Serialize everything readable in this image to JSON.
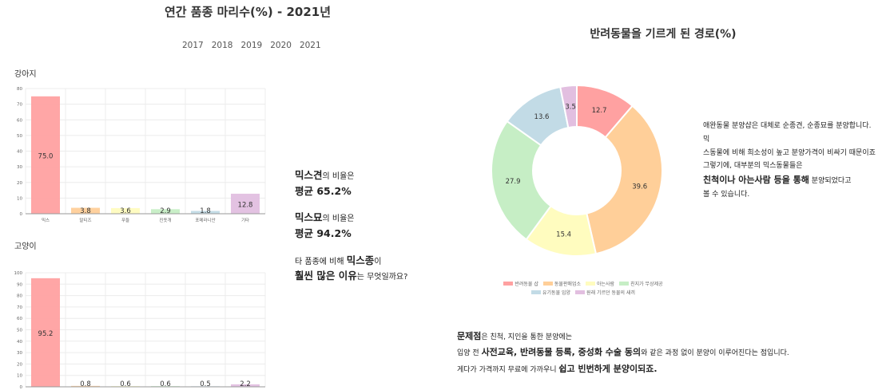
{
  "left": {
    "title": "연간 품종 마리수(%) - 2021년",
    "years": [
      "2017",
      "2018",
      "2019",
      "2020",
      "2021"
    ]
  },
  "chart_data": [
    {
      "type": "bar",
      "label": "강아지",
      "categories": [
        "믹스",
        "말티즈",
        "푸들",
        "진돗개",
        "포메라니안",
        "기타"
      ],
      "values": [
        75.0,
        3.8,
        3.6,
        2.9,
        1.8,
        12.8
      ],
      "value_labels": [
        "75.0",
        "3.8",
        "3.6",
        "2.9",
        "1.8",
        "12.8"
      ],
      "ylim": [
        0,
        80
      ],
      "yticks": [
        "0",
        "10",
        "20",
        "30",
        "40",
        "50",
        "60",
        "70",
        "80"
      ],
      "colors": [
        "#ffa1a1",
        "#ffcf99",
        "#fffcbf",
        "#c6eec5",
        "#c2dbe6",
        "#e2bfe0"
      ]
    },
    {
      "type": "bar",
      "label": "고양이",
      "categories": [
        "믹스",
        "",
        "",
        "",
        "",
        ""
      ],
      "values": [
        95.2,
        0.8,
        0.6,
        0.6,
        0.5,
        2.2
      ],
      "value_labels": [
        "95.2",
        "0.8",
        "0.6",
        "0.6",
        "0.5",
        "2.2"
      ],
      "ylim": [
        0,
        100
      ],
      "yticks": [
        "0",
        "10",
        "20",
        "30",
        "40",
        "50",
        "60",
        "70",
        "80",
        "90",
        "100"
      ],
      "colors": [
        "#ffa1a1",
        "#ffcf99",
        "#fffcbf",
        "#c6eec5",
        "#c2dbe6",
        "#e2bfe0"
      ]
    },
    {
      "type": "pie",
      "title": "반려동물을 기르게 된 경로(%)",
      "labels": [
        "반려동물 샵",
        "동물판매업소",
        "아는사람",
        "친지가 무상제공",
        "유기동물 입양",
        "원래 기르던 동물의 새끼"
      ],
      "values": [
        12.7,
        39.6,
        15.4,
        27.9,
        13.6,
        3.5
      ],
      "value_labels": [
        "12.7",
        "39.6",
        "15.4",
        "27.9",
        "13.6",
        "3.5"
      ],
      "colors": [
        "#ffa1a1",
        "#ffcf99",
        "#fffcbf",
        "#c6eec5",
        "#c2dbe6",
        "#e2bfe0"
      ],
      "donut": true
    }
  ],
  "mid": {
    "dog_strong": "믹스견",
    "dog_suffix": "의 비율은",
    "dog_avg": "평균 65.2%",
    "cat_strong": "믹스묘",
    "cat_suffix": "의 비율은",
    "cat_avg": "평균 94.2%",
    "q_pre": "타 품종에 비해 ",
    "q_strong": "믹스종",
    "q_post": "이",
    "q2_strong": "훨씬 많은 이유",
    "q2_post": "는 무엇일까요?"
  },
  "right": {
    "desc1_line1": "애완동물 분양샵은 대체로 순종견, 순종묘를 분양합니다. 믹",
    "desc1_line2": "스동물에 비해 희소성이 높고 분양가격이 비싸기 때문이죠",
    "desc2_line1": "그렇기에, 대부분의 믹스동물들은",
    "desc2_strong": "친척이나 아는사람 등을 통해",
    "desc2_after": " 분양되었다고",
    "desc2_line3": "볼 수 있습니다.",
    "p1_strong": "문제점",
    "p1_post": "은 친척, 지인을 통한 분양에는",
    "p2_pre": "입양 전 ",
    "p2_strong": "사전교육, 반려동물 등록, 중성화 수술 동의",
    "p2_post": "와 같은 과정 없이 분양이 이루어진다는 점입니다.",
    "p3_pre": "게다가 가격까지 무료에 가까우니 ",
    "p3_strong": "쉽고 빈번하게 분양이되죠."
  }
}
